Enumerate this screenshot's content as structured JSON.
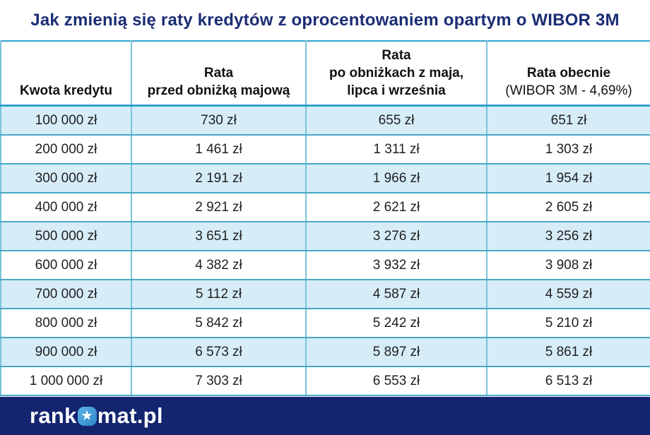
{
  "page": {
    "title": "Jak zmienią się raty kredytów z oprocentowaniem opartym o WIBOR 3M"
  },
  "chart_data": {
    "type": "table",
    "title": "Jak zmienią się raty kredytów z oprocentowaniem opartym o WIBOR 3M",
    "columns": [
      "Kwota kredytu",
      "Rata przed obniżką majową",
      "Rata po obniżkach z maja, lipca i września",
      "Rata obecnie (WIBOR 3M - 4,69%)"
    ],
    "header_cells": [
      {
        "lines": [
          {
            "text": "Kwota kredytu",
            "bold": true
          }
        ]
      },
      {
        "lines": [
          {
            "text": "Rata",
            "bold": true
          },
          {
            "text": "przed obniżką majową",
            "bold": true
          }
        ]
      },
      {
        "lines": [
          {
            "text": "Rata",
            "bold": true
          },
          {
            "text": "po obniżkach z maja,",
            "bold": true
          },
          {
            "text": "lipca i września",
            "bold": true
          }
        ]
      },
      {
        "lines": [
          {
            "text": "Rata obecnie",
            "bold": true
          },
          {
            "text": "(WIBOR 3M - 4,69%)",
            "bold": false
          }
        ]
      }
    ],
    "rows": [
      [
        "100 000 zł",
        "730 zł",
        "655 zł",
        "651 zł"
      ],
      [
        "200 000 zł",
        "1 461 zł",
        "1 311 zł",
        "1 303 zł"
      ],
      [
        "300 000 zł",
        "2 191 zł",
        "1 966 zł",
        "1 954 zł"
      ],
      [
        "400 000 zł",
        "2 921 zł",
        "2 621 zł",
        "2 605 zł"
      ],
      [
        "500 000 zł",
        "3 651 zł",
        "3 276 zł",
        "3 256 zł"
      ],
      [
        "600 000 zł",
        "4 382 zł",
        "3 932 zł",
        "3 908 zł"
      ],
      [
        "700 000 zł",
        "5 112 zł",
        "4 587 zł",
        "4 559 zł"
      ],
      [
        "800 000 zł",
        "5 842 zł",
        "5 242 zł",
        "5 210 zł"
      ],
      [
        "900 000 zł",
        "6 573 zł",
        "5 897 zł",
        "5 861 zł"
      ],
      [
        "1 000 000 zł",
        "7 303 zł",
        "6 553 zł",
        "6 513 zł"
      ]
    ]
  },
  "footer": {
    "brand_prefix": "rank",
    "brand_suffix": "mat.pl",
    "brand_icon_glyph": "★"
  },
  "colors": {
    "title_text": "#1b2d74",
    "row_alt_bg": "#d6edf8",
    "border_horizontal": "#49a7c6",
    "border_vertical": "#7ac3dc",
    "table_outline": "#2fa0c7",
    "footer_bg": "#13256f",
    "brand_icon_bg": "#3d9bd8",
    "header_text": "#111111",
    "cell_text": "#1f1f1f"
  }
}
